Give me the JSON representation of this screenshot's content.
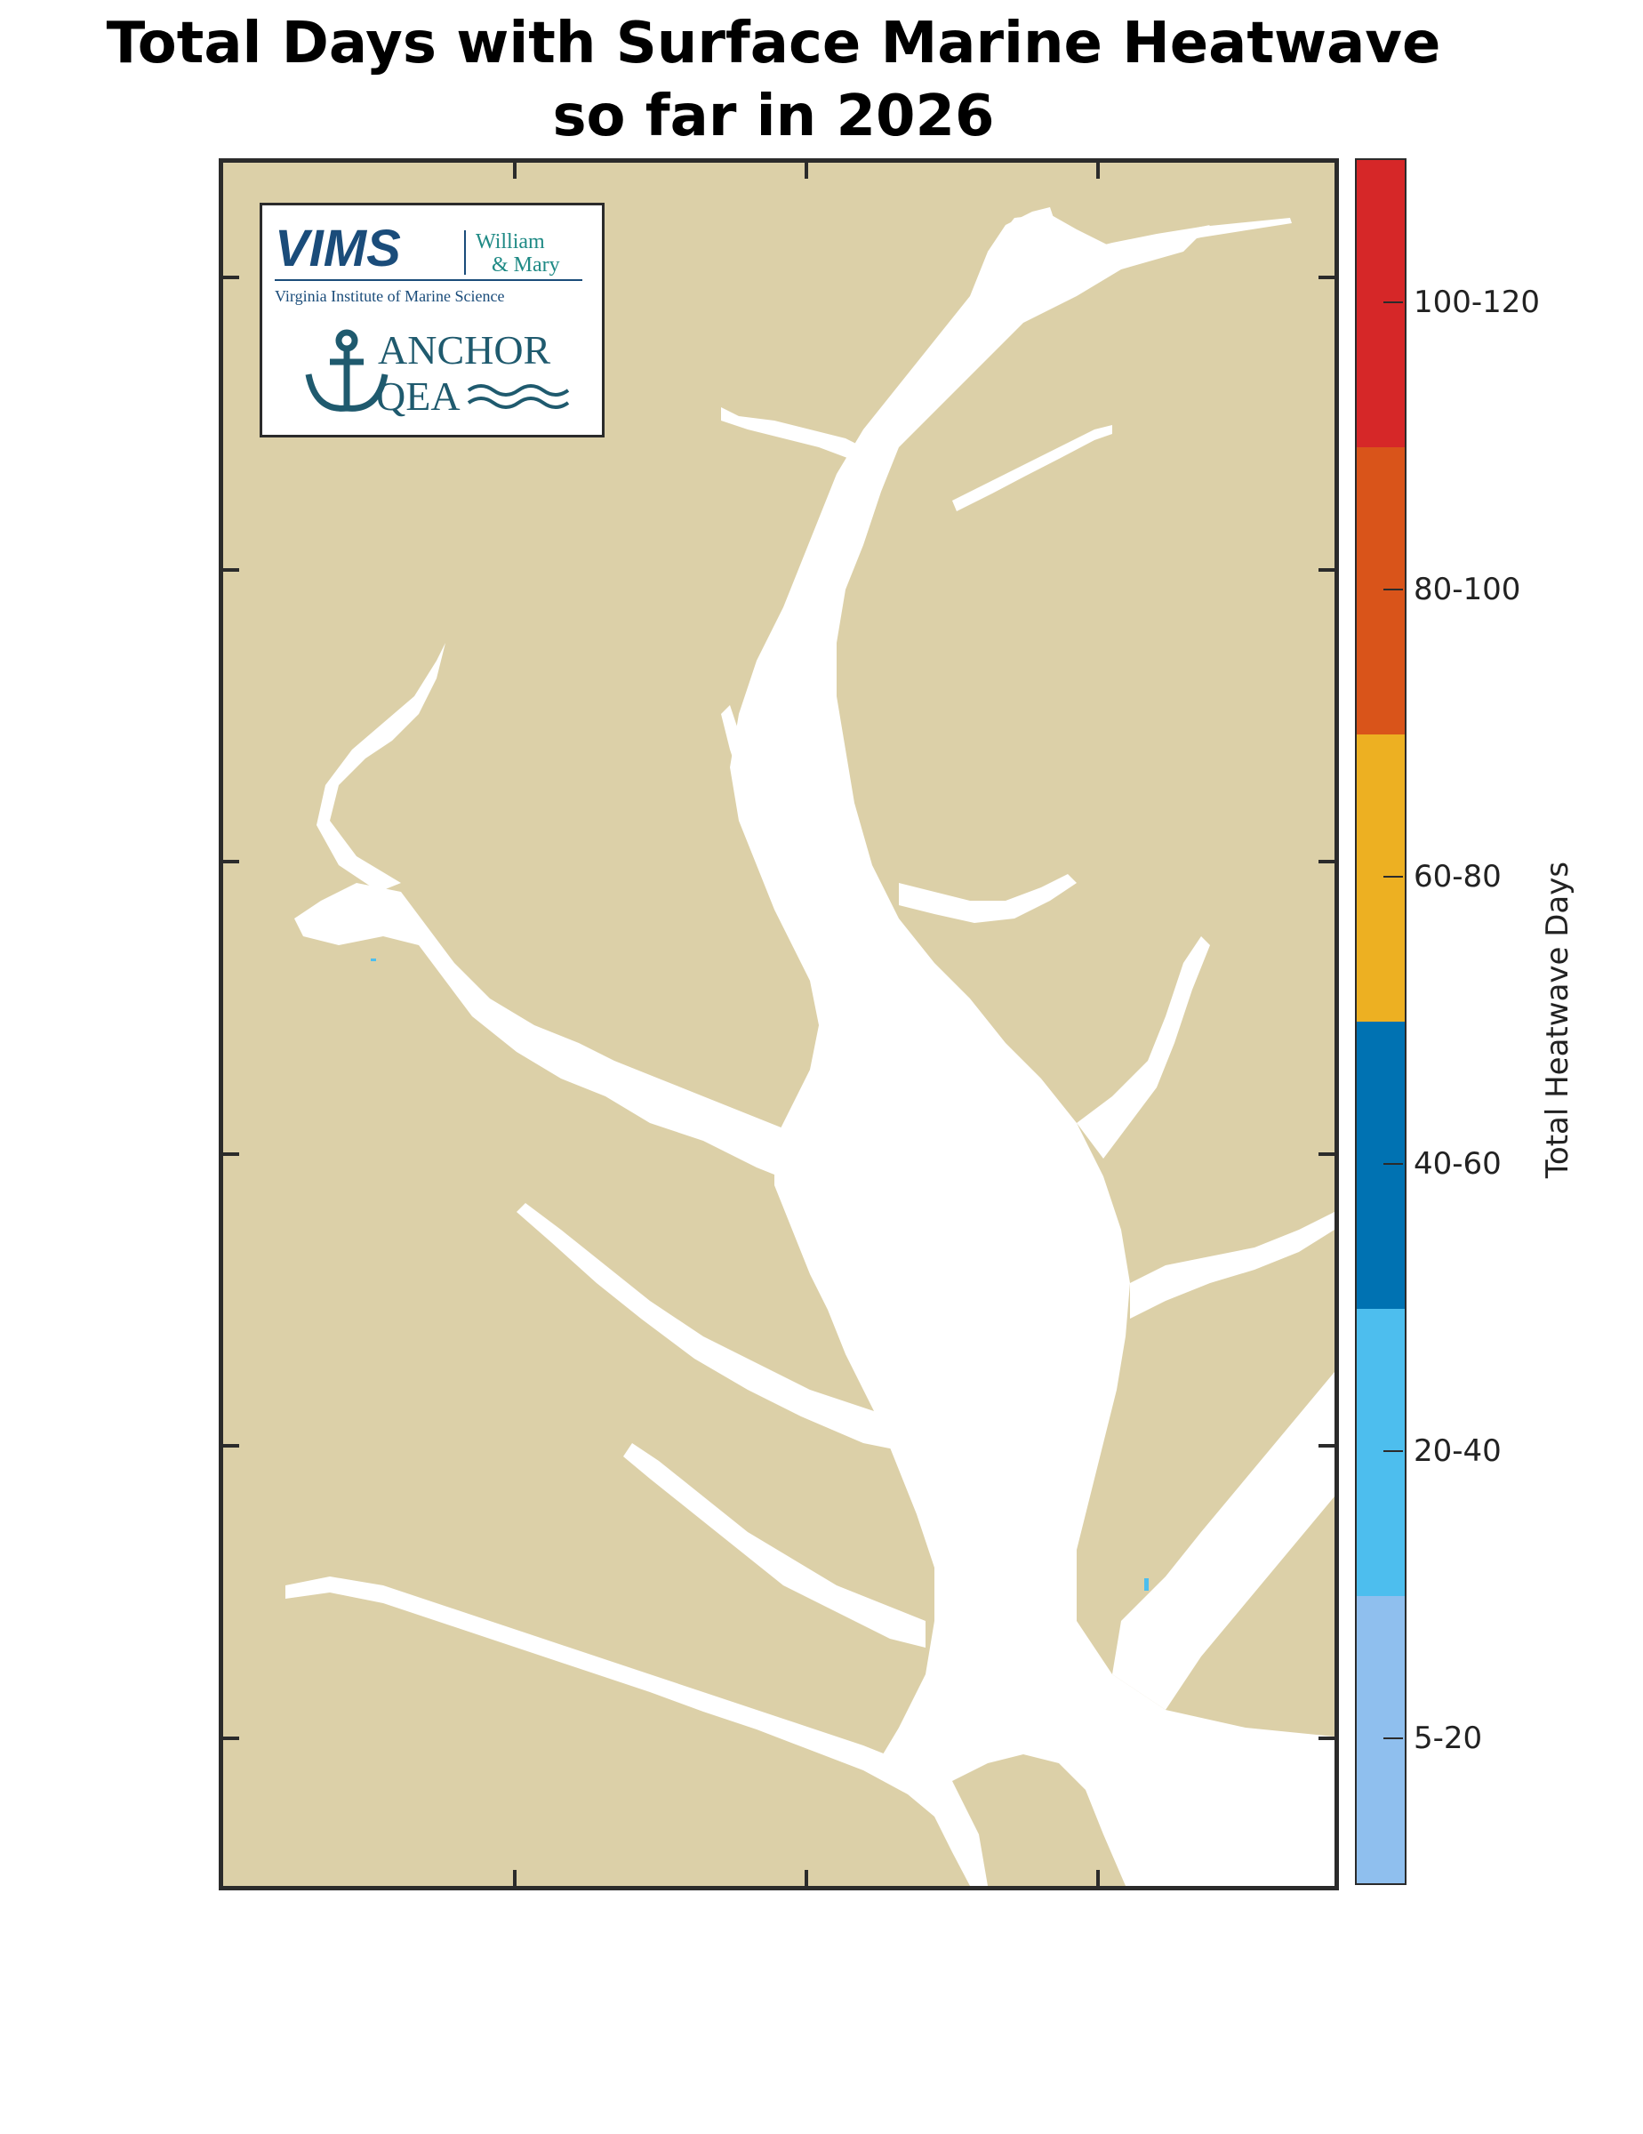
{
  "title_line1": "Total Days with Surface Marine Heatwave",
  "title_line2": "so far in 2026",
  "logo": {
    "vims": "VIMS",
    "william": "William",
    "mary": "& Mary",
    "institute": "Virginia Institute of Marine Science",
    "anchor": "ANCHOR",
    "qea": "QEA"
  },
  "colorbar": {
    "title": "Total Heatwave Days",
    "bins": [
      {
        "label": "100-120",
        "color": "#d62728"
      },
      {
        "label": "80-100",
        "color": "#d9541a"
      },
      {
        "label": "60-80",
        "color": "#edb022"
      },
      {
        "label": "40-60",
        "color": "#0072b2"
      },
      {
        "label": "20-40",
        "color": "#4dbeee"
      },
      {
        "label": "5-20",
        "color": "#8fbfee"
      }
    ]
  },
  "colors": {
    "land": "#dcd0a8",
    "water": "#ffffff",
    "frame": "#2b2b2b"
  }
}
